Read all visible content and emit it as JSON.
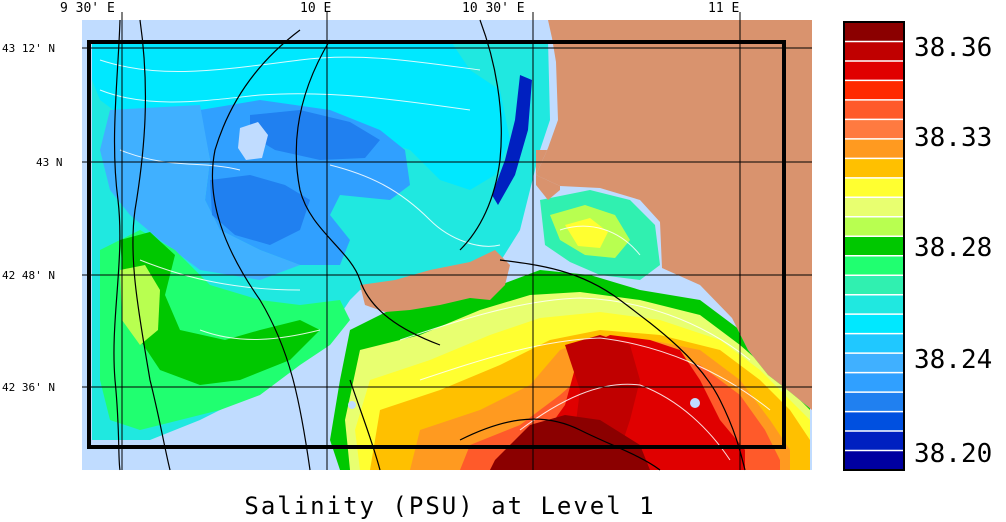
{
  "title": "Salinity (PSU) at Level 1",
  "lon_labels": [
    "9 30' E",
    "10 E",
    "10 30' E",
    "11 E"
  ],
  "lat_labels": [
    "43 12' N",
    "43 N",
    "42 48' N",
    "42 36' N"
  ],
  "colorbar": {
    "tick_labels": [
      "38.36",
      "38.33",
      "38.28",
      "38.24",
      "38.20"
    ],
    "colors": [
      "#8b0000",
      "#c00000",
      "#e00000",
      "#ff2a00",
      "#ff5a2a",
      "#ff7a40",
      "#ff9a20",
      "#ffc000",
      "#ffff30",
      "#e8ff70",
      "#b8ff50",
      "#00c800",
      "#20ff70",
      "#30f0b0",
      "#20e8e0",
      "#00e8ff",
      "#20c8ff",
      "#40b0ff",
      "#30a0ff",
      "#2080f0",
      "#0050e0",
      "#0020c0",
      "#0000a0"
    ]
  },
  "colors": {
    "land": "#d9936e",
    "shallow": "#c0dcff",
    "frame": "#000000"
  }
}
